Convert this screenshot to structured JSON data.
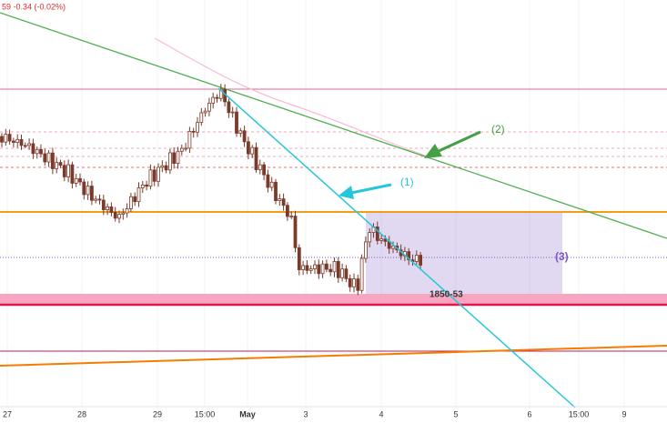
{
  "header": {
    "quote": "59 -0.34 (-0.02%)"
  },
  "x_axis": {
    "labels": [
      "27",
      "28",
      "29",
      "15:00",
      "May",
      "3",
      "4",
      "5",
      "6",
      "15:00",
      "9"
    ]
  },
  "annotations": {
    "wave_1": "(1)",
    "wave_2": "(2)",
    "wave_3": "(3)",
    "zone": "1850-53"
  }
}
